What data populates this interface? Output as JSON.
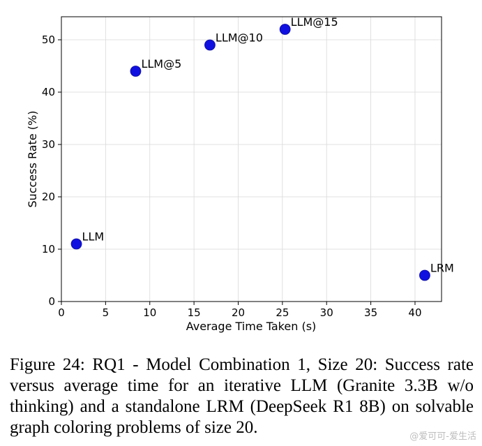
{
  "chart_data": {
    "type": "scatter",
    "xlabel": "Average Time Taken (s)",
    "ylabel": "Success Rate (%)",
    "xlim": [
      0,
      43
    ],
    "ylim": [
      0,
      54.4
    ],
    "xticks": [
      0,
      5,
      10,
      15,
      20,
      25,
      30,
      35,
      40
    ],
    "yticks": [
      0,
      10,
      20,
      30,
      40,
      50
    ],
    "grid": true,
    "marker_color": "#1010e0",
    "points": [
      {
        "label": "LLM",
        "x": 1.7,
        "y": 11
      },
      {
        "label": "LLM@5",
        "x": 8.4,
        "y": 44
      },
      {
        "label": "LLM@10",
        "x": 16.8,
        "y": 49
      },
      {
        "label": "LLM@15",
        "x": 25.3,
        "y": 52
      },
      {
        "label": "LRM",
        "x": 41.1,
        "y": 5
      }
    ]
  },
  "caption": "Figure 24: RQ1 - Model Combination 1, Size 20: Success rate versus average time for an iterative LLM (Granite 3.3B w/o thinking) and a standalone LRM (DeepSeek R1 8B) on solvable graph coloring problems of size 20.",
  "watermark": "@爱可可-爱生活"
}
